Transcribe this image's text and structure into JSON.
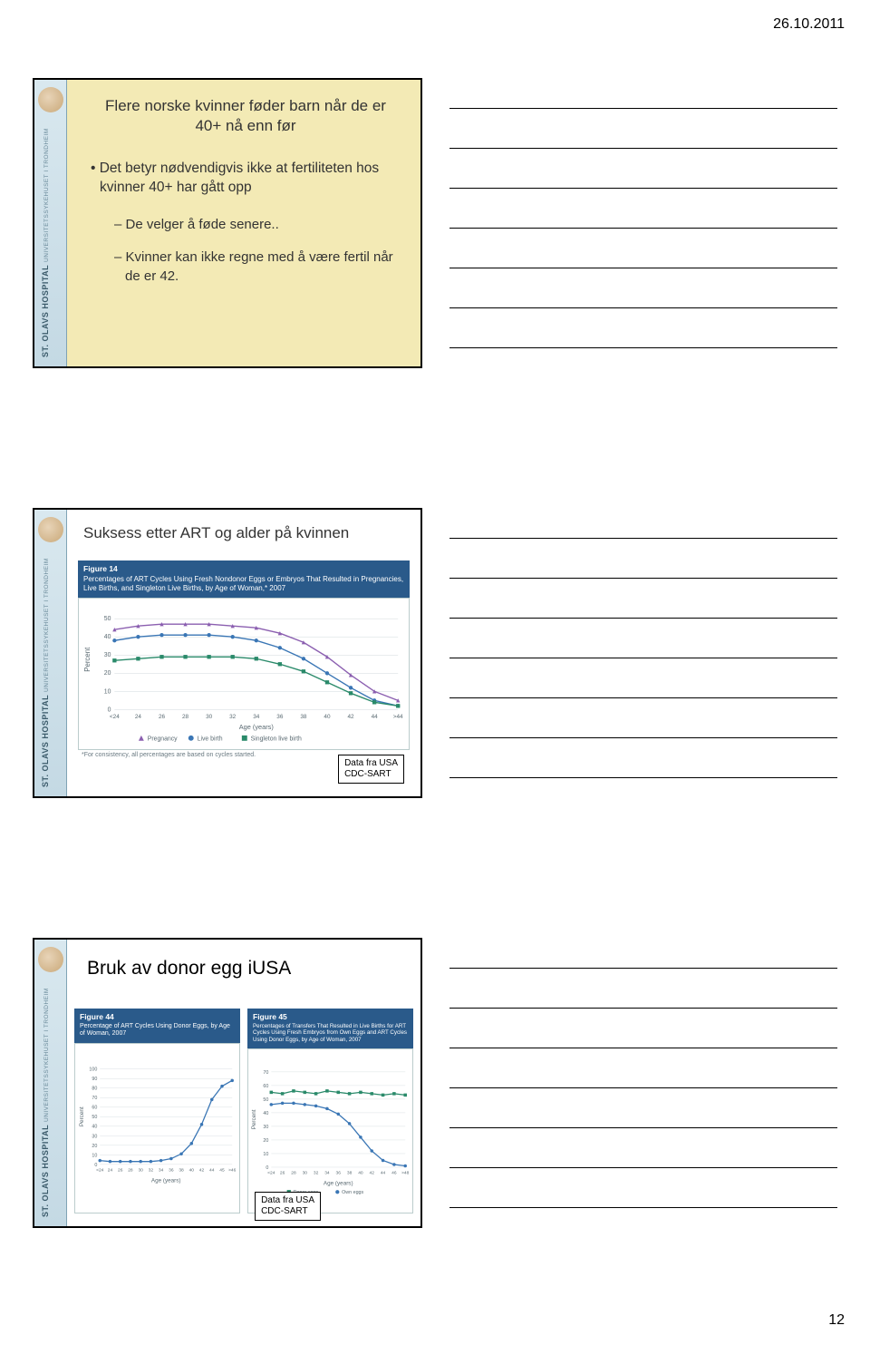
{
  "page": {
    "date": "26.10.2011",
    "number": "12"
  },
  "sidebar": {
    "hospital": "ST. OLAVS HOSPITAL",
    "sub": "UNIVERSITETSSYKEHUSET I TRONDHEIM"
  },
  "slide1": {
    "title_l1": "Flere norske kvinner føder barn når de er",
    "title_l2": "40+ nå enn før",
    "bullet": "Det betyr nødvendigvis ikke at fertiliteten hos kvinner 40+ har gått opp",
    "sub1": "De velger å føde senere..",
    "sub2": "Kvinner kan ikke regne med å være fertil når de er 42."
  },
  "slide2": {
    "title": "Suksess etter ART og alder på kvinnen",
    "fig_label": "Figure 14",
    "fig_caption": "Percentages of ART Cycles Using Fresh Nondonor Eggs or Embryos That Resulted in Pregnancies, Live Births, and Singleton Live Births, by Age of Woman,* 2007",
    "y_title": "Percent",
    "x_title": "Age (years)",
    "x_labels": [
      "<24",
      "24",
      "26",
      "28",
      "30",
      "32",
      "34",
      "36",
      "38",
      "40",
      "42",
      "44",
      ">44"
    ],
    "y_ticks": [
      0,
      10,
      20,
      30,
      40,
      50
    ],
    "ylim": [
      0,
      55
    ],
    "grid_color": "#d0d8dc",
    "background_color": "#ffffff",
    "series": [
      {
        "name": "Pregnancy",
        "color": "#8b5fb0",
        "marker": "triangle",
        "values": [
          44,
          46,
          47,
          47,
          47,
          46,
          45,
          42,
          37,
          29,
          19,
          10,
          5
        ]
      },
      {
        "name": "Live birth",
        "color": "#3a76b5",
        "marker": "circle",
        "values": [
          38,
          40,
          41,
          41,
          41,
          40,
          38,
          34,
          28,
          20,
          12,
          5,
          2
        ]
      },
      {
        "name": "Singleton live birth",
        "color": "#2a8a6a",
        "marker": "square",
        "values": [
          27,
          28,
          29,
          29,
          29,
          29,
          28,
          25,
          21,
          15,
          9,
          4,
          2
        ]
      }
    ],
    "footer": "*For consistency, all percentages are based on cycles started.",
    "badge": "Data fra USA\nCDC-SART"
  },
  "slide3": {
    "title": "Bruk av donor egg iUSA",
    "badge": "Data fra USA\nCDC-SART",
    "fig_left": {
      "label": "Figure 44",
      "caption": "Percentage of ART Cycles Using Donor Eggs, by Age of Woman, 2007",
      "y_title": "Percent",
      "x_title": "Age (years)",
      "x_labels": [
        "<24",
        "24",
        "26",
        "28",
        "30",
        "32",
        "34",
        "36",
        "38",
        "40",
        "42",
        "44",
        "45",
        ">46"
      ],
      "y_ticks": [
        0,
        10,
        20,
        30,
        40,
        50,
        60,
        70,
        80,
        90,
        100
      ],
      "ylim": [
        0,
        100
      ],
      "series": {
        "color": "#3a76b5",
        "marker": "circle",
        "values": [
          4,
          3,
          3,
          3,
          3,
          3,
          4,
          6,
          11,
          22,
          42,
          68,
          82,
          88
        ]
      }
    },
    "fig_right": {
      "label": "Figure 45",
      "caption": "Percentages of Transfers That Resulted in Live Births for ART Cycles Using Fresh Embryos from Own Eggs and ART Cycles Using Donor Eggs, by Age of Woman, 2007",
      "y_title": "Percent",
      "x_title": "Age (years)",
      "x_labels": [
        "<24",
        "26",
        "28",
        "30",
        "32",
        "34",
        "36",
        "38",
        "40",
        "42",
        "44",
        "46",
        ">48"
      ],
      "y_ticks": [
        0,
        10,
        20,
        30,
        40,
        50,
        60,
        70
      ],
      "ylim": [
        0,
        70
      ],
      "series": [
        {
          "name": "Donor eggs",
          "color": "#2a8a6a",
          "marker": "square",
          "values": [
            55,
            54,
            56,
            55,
            54,
            56,
            55,
            54,
            55,
            54,
            53,
            54,
            53
          ]
        },
        {
          "name": "Own eggs",
          "color": "#3a76b5",
          "marker": "circle",
          "values": [
            46,
            47,
            47,
            46,
            45,
            43,
            39,
            32,
            22,
            12,
            5,
            2,
            1
          ]
        }
      ]
    }
  },
  "note_lines": 7
}
